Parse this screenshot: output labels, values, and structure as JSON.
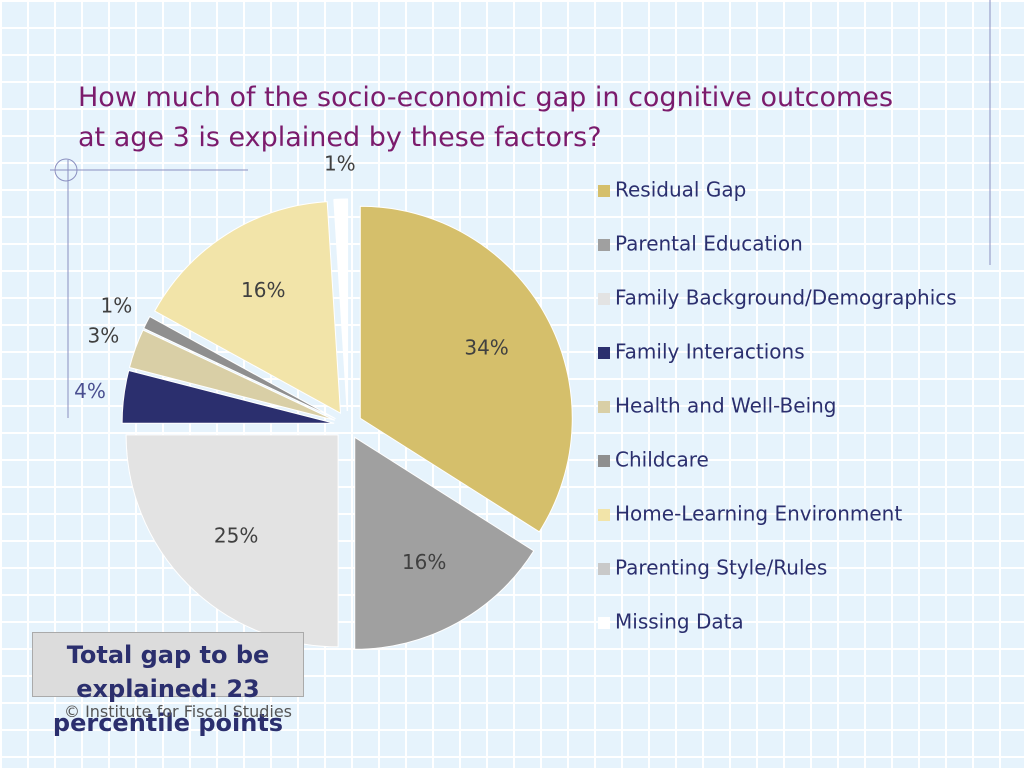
{
  "chart_data": {
    "type": "pie",
    "title": "How much of the socio-economic gap in cognitive outcomes at age 3 is explained by these factors?",
    "categories": [
      "Residual Gap",
      "Parental Education",
      "Family Background/Demographics",
      "Family Interactions",
      "Health and Well-Being",
      "Childcare",
      "Home-Learning Environment",
      "Parenting Style/Rules",
      "Missing Data"
    ],
    "values": [
      34,
      16,
      25,
      4,
      3,
      1,
      16,
      0,
      1
    ],
    "value_labels": [
      "34%",
      "16%",
      "25%",
      "4%",
      "3%",
      "1%",
      "16%",
      null,
      "1%"
    ],
    "colors": [
      "#d5bf6b",
      "#a0a0a0",
      "#e3e3e3",
      "#2b2f6e",
      "#d9cfa6",
      "#8f8f8f",
      "#f2e4a9",
      "#c9c9c9",
      "#ffffff"
    ],
    "legend": "right",
    "annotations": [
      "Total gap to be explained: 23 percentile points",
      "© Institute for Fiscal Studies"
    ]
  }
}
